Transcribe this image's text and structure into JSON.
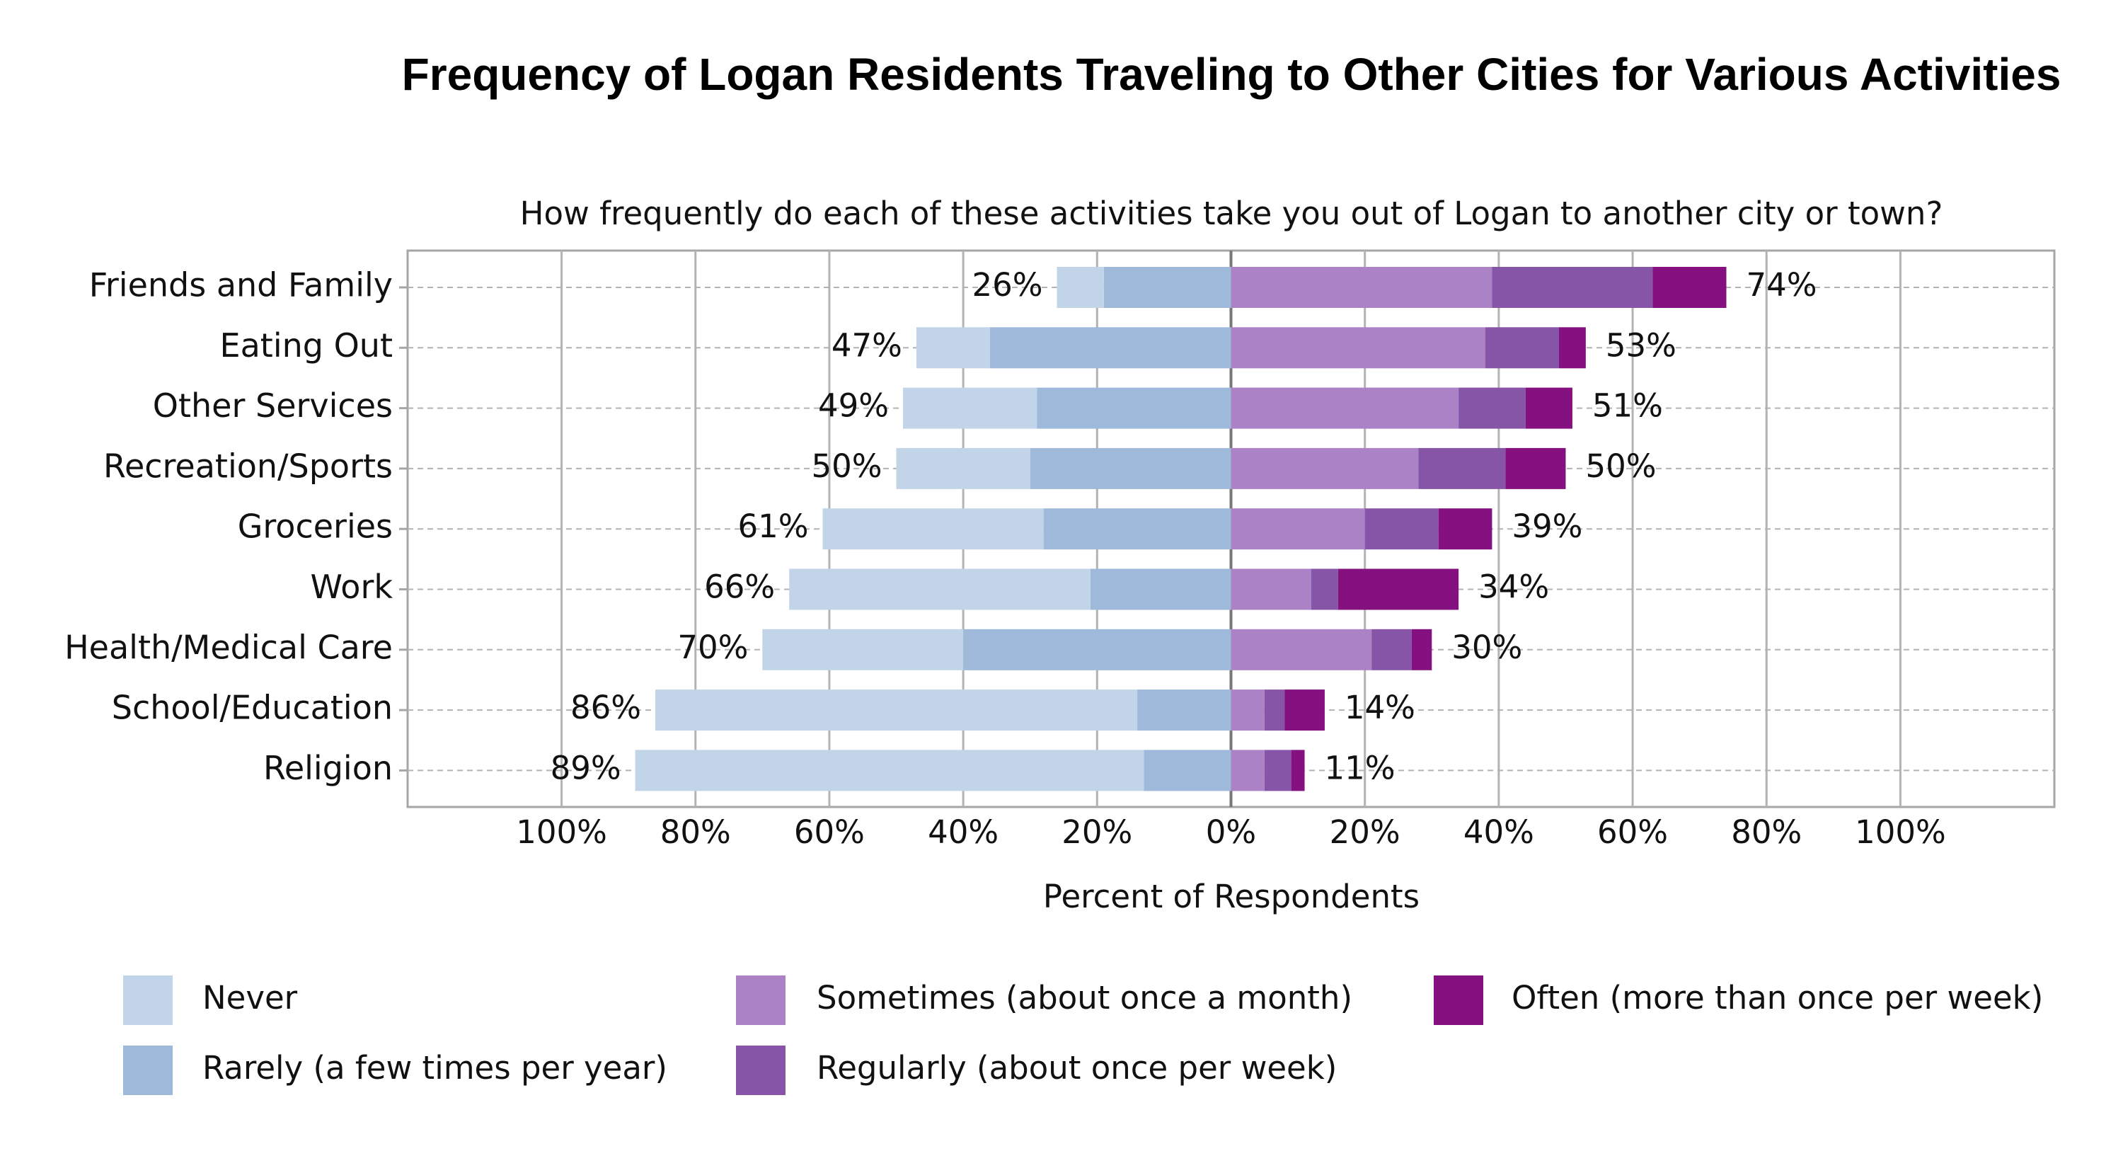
{
  "chart_data": {
    "type": "diverging_bar",
    "title": "Frequency of Logan Residents Traveling to Other Cities for Various Activities",
    "subtitle": "How frequently do each of these activities take you out of Logan to another city or town?",
    "x_label": "Percent of Respondents",
    "categories": [
      "Friends and Family",
      "Eating Out",
      "Other Services",
      "Recreation/Sports",
      "Groceries",
      "Work",
      "Health/Medical Care",
      "School/Education",
      "Religion"
    ],
    "series": [
      {
        "name": "Never",
        "color": "#c2d5e8",
        "side": "left",
        "values": [
          7,
          11,
          20,
          20,
          33,
          45,
          30,
          72,
          76
        ]
      },
      {
        "name": "Rarely (a few times per year)",
        "color": "#9eb9d9",
        "side": "left",
        "values": [
          19,
          36,
          29,
          30,
          28,
          21,
          40,
          14,
          13
        ]
      },
      {
        "name": "Sometimes (about once a month)",
        "color": "#ab82c5",
        "side": "right",
        "values": [
          39,
          38,
          34,
          28,
          20,
          12,
          21,
          5,
          5
        ]
      },
      {
        "name": "Regularly (about once per week)",
        "color": "#8755a8",
        "side": "right",
        "values": [
          24,
          11,
          10,
          13,
          11,
          4,
          6,
          3,
          4
        ]
      },
      {
        "name": "Often (more than once per week)",
        "color": "#84117f",
        "side": "right",
        "values": [
          11,
          4,
          7,
          9,
          8,
          18,
          3,
          6,
          2
        ]
      }
    ],
    "left_totals": {
      "values": [
        26,
        47,
        49,
        50,
        61,
        66,
        70,
        86,
        89
      ],
      "value_labels": [
        "26%",
        "47%",
        "49%",
        "50%",
        "61%",
        "66%",
        "70%",
        "86%",
        "89%"
      ]
    },
    "right_totals": {
      "values": [
        74,
        53,
        51,
        50,
        39,
        34,
        30,
        14,
        11
      ],
      "value_labels": [
        "74%",
        "53%",
        "51%",
        "50%",
        "39%",
        "34%",
        "30%",
        "14%",
        "11%"
      ]
    },
    "xlim": [
      -123,
      123
    ],
    "xticks": [
      {
        "value": -100,
        "label": "100%"
      },
      {
        "value": -80,
        "label": "80%"
      },
      {
        "value": -60,
        "label": "60%"
      },
      {
        "value": -40,
        "label": "40%"
      },
      {
        "value": -20,
        "label": "20%"
      },
      {
        "value": 0,
        "label": "0%"
      },
      {
        "value": 20,
        "label": "20%"
      },
      {
        "value": 40,
        "label": "40%"
      },
      {
        "value": 60,
        "label": "60%"
      },
      {
        "value": 80,
        "label": "80%"
      },
      {
        "value": 100,
        "label": "100%"
      }
    ],
    "grid": true
  }
}
